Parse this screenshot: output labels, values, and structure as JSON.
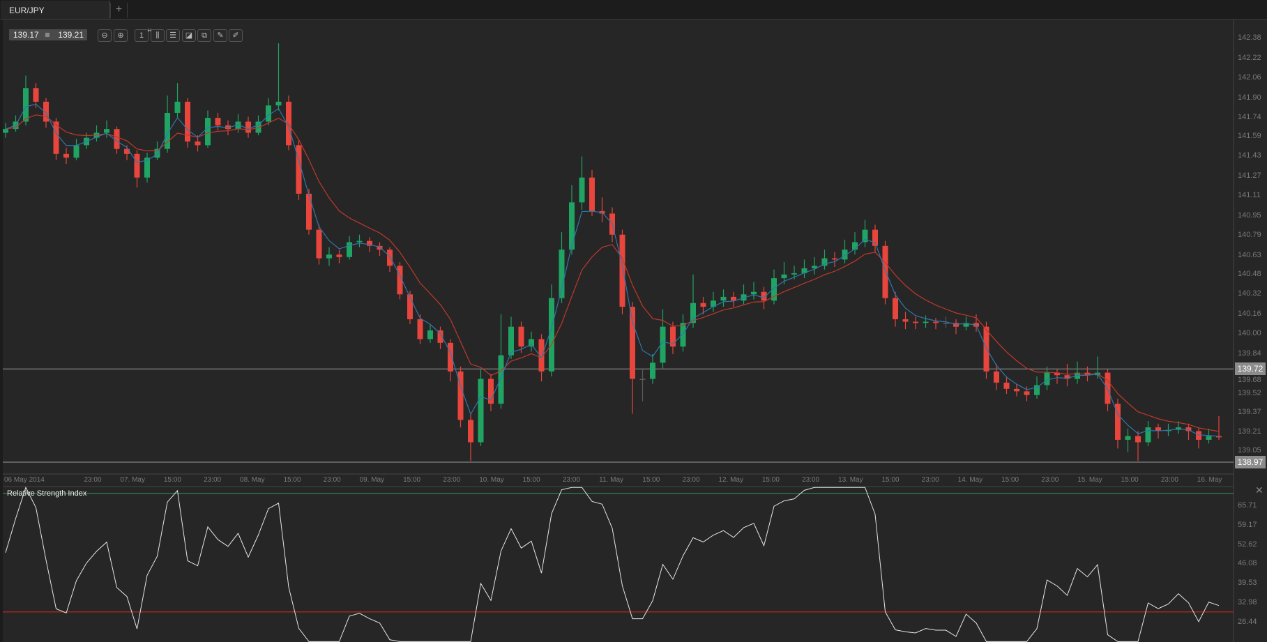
{
  "tabs": [
    {
      "label": "EUR/JPY"
    }
  ],
  "add_tab_label": "+",
  "toolbar": {
    "bid": "139.17",
    "ask": "139.21",
    "timeframe": "1",
    "timeframe_unit": "H",
    "icons": [
      "zoom-out-icon",
      "zoom-in-icon",
      "timeframe-icon",
      "chart-type-icon",
      "indicators-icon",
      "chart-settings-icon",
      "copy-icon",
      "edit-icon",
      "draw-icon"
    ]
  },
  "colors": {
    "background": "#262626",
    "bull": "#1fa463",
    "bear": "#e8453c",
    "doji": "#5a5a5a",
    "fast_ma": "#2f77ad",
    "slow_ma": "#c0392b",
    "rsi_line": "#e6e6e6",
    "rsi_upper": "#2e9e4a",
    "rsi_lower": "#d9281e",
    "hline": "#9a9a9a"
  },
  "chart_data": {
    "type": "candlestick",
    "symbol": "EUR/JPY",
    "ylim": [
      138.97,
      142.38
    ],
    "y_ticks": [
      "142.38",
      "142.22",
      "142.06",
      "141.90",
      "141.74",
      "141.59",
      "141.43",
      "141.27",
      "141.11",
      "140.95",
      "140.79",
      "140.63",
      "140.48",
      "140.32",
      "140.16",
      "140.00",
      "139.84",
      "139.68",
      "139.52",
      "139.37",
      "139.21",
      "139.05"
    ],
    "x_labels": [
      "06 May 2014",
      "23:00",
      "07. May",
      "15:00",
      "23:00",
      "08. May",
      "15:00",
      "23:00",
      "09. May",
      "15:00",
      "23:00",
      "10. May",
      "15:00",
      "23:00",
      "11. May",
      "15:00",
      "23:00",
      "12. May",
      "15:00",
      "23:00",
      "13. May",
      "15:00",
      "23:00",
      "14. May",
      "15:00",
      "23:00",
      "15. May",
      "15:00",
      "23:00",
      "16. May"
    ],
    "price_lines": [
      {
        "value": "139.72"
      },
      {
        "value": "138.97"
      }
    ],
    "candles": [
      [
        141.62,
        141.7,
        141.58,
        141.65
      ],
      [
        141.65,
        141.76,
        141.63,
        141.71
      ],
      [
        141.71,
        142.08,
        141.68,
        141.98
      ],
      [
        141.98,
        142.02,
        141.82,
        141.87
      ],
      [
        141.87,
        141.9,
        141.66,
        141.71
      ],
      [
        141.71,
        141.74,
        141.4,
        141.45
      ],
      [
        141.45,
        141.5,
        141.37,
        141.42
      ],
      [
        141.42,
        141.57,
        141.4,
        141.52
      ],
      [
        141.52,
        141.62,
        141.49,
        141.58
      ],
      [
        141.58,
        141.68,
        141.55,
        141.62
      ],
      [
        141.62,
        141.72,
        141.58,
        141.65
      ],
      [
        141.65,
        141.67,
        141.45,
        141.49
      ],
      [
        141.49,
        141.52,
        141.4,
        141.45
      ],
      [
        141.45,
        141.48,
        141.18,
        141.26
      ],
      [
        141.26,
        141.46,
        141.22,
        141.42
      ],
      [
        141.42,
        141.55,
        141.4,
        141.49
      ],
      [
        141.49,
        141.92,
        141.46,
        141.78
      ],
      [
        141.78,
        142.02,
        141.74,
        141.87
      ],
      [
        141.87,
        141.9,
        141.5,
        141.55
      ],
      [
        141.55,
        141.6,
        141.47,
        141.52
      ],
      [
        141.52,
        141.8,
        141.5,
        141.74
      ],
      [
        141.74,
        141.78,
        141.64,
        141.68
      ],
      [
        141.68,
        141.72,
        141.6,
        141.65
      ],
      [
        141.65,
        141.77,
        141.62,
        141.71
      ],
      [
        141.71,
        141.75,
        141.58,
        141.62
      ],
      [
        141.62,
        141.76,
        141.6,
        141.71
      ],
      [
        141.71,
        141.9,
        141.68,
        141.84
      ],
      [
        141.84,
        142.34,
        141.8,
        141.87
      ],
      [
        141.87,
        141.92,
        141.48,
        141.52
      ],
      [
        141.52,
        141.56,
        141.08,
        141.13
      ],
      [
        141.13,
        141.17,
        140.8,
        140.84
      ],
      [
        140.84,
        140.88,
        140.56,
        140.61
      ],
      [
        140.61,
        140.7,
        140.55,
        140.64
      ],
      [
        140.64,
        140.68,
        140.57,
        140.62
      ],
      [
        140.62,
        140.79,
        140.6,
        140.74
      ],
      [
        140.74,
        140.8,
        140.7,
        140.75
      ],
      [
        140.75,
        140.78,
        140.66,
        140.71
      ],
      [
        140.71,
        140.74,
        140.63,
        140.68
      ],
      [
        140.68,
        140.7,
        140.5,
        140.55
      ],
      [
        140.55,
        140.58,
        140.28,
        140.32
      ],
      [
        140.32,
        140.35,
        140.08,
        140.12
      ],
      [
        140.12,
        140.16,
        139.92,
        139.96
      ],
      [
        139.96,
        140.08,
        139.93,
        140.03
      ],
      [
        140.03,
        140.06,
        139.88,
        139.93
      ],
      [
        139.93,
        139.96,
        139.62,
        139.7
      ],
      [
        139.7,
        139.74,
        139.25,
        139.31
      ],
      [
        139.31,
        139.36,
        138.98,
        139.13
      ],
      [
        139.13,
        139.72,
        139.1,
        139.64
      ],
      [
        139.64,
        139.68,
        139.38,
        139.44
      ],
      [
        139.44,
        140.16,
        139.4,
        139.83
      ],
      [
        139.83,
        140.14,
        139.8,
        140.06
      ],
      [
        140.06,
        140.1,
        139.85,
        139.9
      ],
      [
        139.9,
        140.02,
        139.86,
        139.96
      ],
      [
        139.96,
        140.0,
        139.62,
        139.7
      ],
      [
        139.7,
        140.4,
        139.66,
        140.29
      ],
      [
        140.29,
        140.82,
        140.25,
        140.68
      ],
      [
        140.68,
        141.2,
        140.64,
        141.06
      ],
      [
        141.06,
        141.43,
        141.0,
        141.26
      ],
      [
        141.26,
        141.32,
        140.95,
        140.99
      ],
      [
        140.99,
        141.1,
        140.9,
        140.97
      ],
      [
        140.97,
        141.02,
        140.74,
        140.8
      ],
      [
        140.8,
        140.84,
        140.16,
        140.22
      ],
      [
        140.22,
        140.26,
        139.36,
        139.64
      ],
      [
        139.64,
        139.72,
        139.46,
        139.64
      ],
      [
        139.64,
        139.84,
        139.6,
        139.77
      ],
      [
        139.77,
        140.2,
        139.72,
        140.06
      ],
      [
        140.06,
        140.1,
        139.84,
        139.9
      ],
      [
        139.9,
        140.16,
        139.86,
        140.09
      ],
      [
        140.09,
        140.48,
        140.05,
        140.25
      ],
      [
        140.25,
        140.3,
        140.16,
        140.22
      ],
      [
        140.22,
        140.34,
        140.18,
        140.27
      ],
      [
        140.27,
        140.36,
        140.22,
        140.3
      ],
      [
        140.3,
        140.34,
        140.22,
        140.27
      ],
      [
        140.27,
        140.4,
        140.24,
        140.32
      ],
      [
        140.32,
        140.42,
        140.28,
        140.34
      ],
      [
        140.34,
        140.38,
        140.2,
        140.27
      ],
      [
        140.27,
        140.52,
        140.24,
        140.45
      ],
      [
        140.45,
        140.58,
        140.4,
        140.48
      ],
      [
        140.48,
        140.55,
        140.44,
        140.49
      ],
      [
        140.49,
        140.6,
        140.45,
        140.53
      ],
      [
        140.53,
        140.62,
        140.48,
        140.55
      ],
      [
        140.55,
        140.68,
        140.52,
        140.61
      ],
      [
        140.61,
        140.66,
        140.54,
        140.6
      ],
      [
        140.6,
        140.76,
        140.57,
        140.68
      ],
      [
        140.68,
        140.82,
        140.64,
        140.74
      ],
      [
        140.74,
        140.92,
        140.7,
        140.84
      ],
      [
        140.84,
        140.88,
        140.66,
        140.71
      ],
      [
        140.71,
        140.75,
        140.24,
        140.29
      ],
      [
        140.29,
        140.34,
        140.06,
        140.12
      ],
      [
        140.12,
        140.18,
        140.04,
        140.1
      ],
      [
        140.1,
        140.14,
        140.04,
        140.09
      ],
      [
        140.09,
        140.15,
        140.05,
        140.1
      ],
      [
        140.1,
        140.13,
        140.04,
        140.09
      ],
      [
        140.09,
        140.14,
        140.05,
        140.09
      ],
      [
        140.09,
        140.12,
        140.0,
        140.06
      ],
      [
        140.06,
        140.14,
        140.03,
        140.09
      ],
      [
        140.09,
        140.16,
        140.02,
        140.06
      ],
      [
        140.06,
        140.1,
        139.64,
        139.7
      ],
      [
        139.7,
        139.76,
        139.55,
        139.61
      ],
      [
        139.61,
        139.66,
        139.52,
        139.56
      ],
      [
        139.56,
        139.6,
        139.5,
        139.54
      ],
      [
        139.54,
        139.58,
        139.46,
        139.51
      ],
      [
        139.51,
        139.66,
        139.48,
        139.59
      ],
      [
        139.59,
        139.74,
        139.55,
        139.69
      ],
      [
        139.69,
        139.72,
        139.6,
        139.67
      ],
      [
        139.67,
        139.76,
        139.58,
        139.64
      ],
      [
        139.64,
        139.78,
        139.6,
        139.69
      ],
      [
        139.69,
        139.74,
        139.62,
        139.67
      ],
      [
        139.67,
        139.82,
        139.64,
        139.69
      ],
      [
        139.69,
        139.72,
        139.38,
        139.44
      ],
      [
        139.44,
        139.48,
        139.08,
        139.15
      ],
      [
        139.15,
        139.24,
        139.05,
        139.18
      ],
      [
        139.18,
        139.22,
        138.98,
        139.13
      ],
      [
        139.13,
        139.3,
        139.1,
        139.25
      ],
      [
        139.25,
        139.28,
        139.16,
        139.22
      ],
      [
        139.22,
        139.28,
        139.18,
        139.23
      ],
      [
        139.23,
        139.3,
        139.2,
        139.25
      ],
      [
        139.25,
        139.28,
        139.15,
        139.22
      ],
      [
        139.22,
        139.25,
        139.08,
        139.15
      ],
      [
        139.15,
        139.24,
        139.12,
        139.18
      ],
      [
        139.18,
        139.34,
        139.15,
        139.17
      ]
    ],
    "rsi": {
      "title": "Relative Strength Index",
      "y_ticks": [
        "65.71",
        "59.17",
        "52.62",
        "46.08",
        "39.53",
        "32.98",
        "26.44"
      ],
      "upper_level": 70,
      "lower_level": 30
    }
  }
}
